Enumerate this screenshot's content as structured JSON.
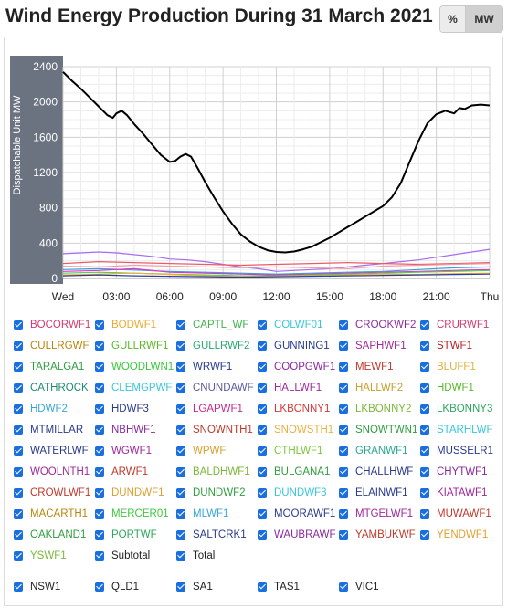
{
  "header": {
    "title": "Wind Energy Production During 31 March 2021",
    "toggle": {
      "percent_label": "%",
      "mw_label": "MW",
      "selected": "MW"
    }
  },
  "chart_data": {
    "type": "line",
    "ylabel": "Dispatchable Unit MW",
    "ylim": [
      0,
      2400
    ],
    "yticks": [
      "0",
      "400",
      "800",
      "1200",
      "1600",
      "2000",
      "2400"
    ],
    "xlim": [
      0,
      24
    ],
    "xticks": [
      {
        "x": 0,
        "label": "Wed"
      },
      {
        "x": 3,
        "label": "03:00"
      },
      {
        "x": 6,
        "label": "06:00"
      },
      {
        "x": 9,
        "label": "09:00"
      },
      {
        "x": 12,
        "label": "12:00"
      },
      {
        "x": 15,
        "label": "15:00"
      },
      {
        "x": 18,
        "label": "18:00"
      },
      {
        "x": 21,
        "label": "21:00"
      },
      {
        "x": 24,
        "label": "Thu"
      }
    ],
    "grid": true,
    "series": [
      {
        "name": "Total",
        "color": "#000000",
        "x": [
          0,
          0.5,
          1,
          1.5,
          2,
          2.5,
          2.8,
          3,
          3.3,
          3.6,
          4,
          4.5,
          5,
          5.5,
          6,
          6.3,
          6.6,
          6.9,
          7.2,
          7.6,
          8,
          8.5,
          9,
          9.5,
          10,
          10.5,
          11,
          11.5,
          12,
          12.5,
          13,
          13.5,
          14,
          14.5,
          15,
          15.5,
          16,
          16.5,
          17,
          17.5,
          18,
          18.5,
          19,
          19.5,
          20,
          20.5,
          21,
          21.5,
          22,
          22.3,
          22.6,
          23,
          23.5,
          24
        ],
        "y": [
          2340,
          2240,
          2150,
          2050,
          1950,
          1850,
          1820,
          1870,
          1900,
          1850,
          1750,
          1640,
          1520,
          1400,
          1320,
          1330,
          1380,
          1410,
          1380,
          1240,
          1090,
          920,
          760,
          620,
          500,
          420,
          360,
          320,
          300,
          295,
          305,
          330,
          360,
          410,
          460,
          520,
          580,
          640,
          700,
          760,
          820,
          920,
          1080,
          1320,
          1560,
          1760,
          1860,
          1900,
          1870,
          1930,
          1920,
          1960,
          1970,
          1960
        ]
      },
      {
        "name": "",
        "color": "#a66cf0",
        "x": [
          0,
          1,
          2,
          3,
          4,
          5,
          6,
          7,
          8,
          9,
          10,
          11,
          12,
          13,
          14,
          15,
          16,
          17,
          18,
          19,
          20,
          21,
          22,
          23,
          24
        ],
        "y": [
          280,
          290,
          300,
          290,
          270,
          250,
          220,
          210,
          190,
          160,
          130,
          110,
          80,
          90,
          100,
          110,
          130,
          150,
          170,
          190,
          210,
          240,
          270,
          300,
          330
        ]
      },
      {
        "name": "",
        "color": "#e85c68",
        "x": [
          0,
          2,
          4,
          6,
          8,
          10,
          12,
          14,
          16,
          18,
          20,
          22,
          24
        ],
        "y": [
          170,
          190,
          180,
          170,
          160,
          150,
          160,
          170,
          180,
          170,
          160,
          170,
          180
        ]
      },
      {
        "name": "",
        "color": "#f0a0a8",
        "x": [
          0,
          2,
          4,
          6,
          8,
          10,
          12,
          14,
          16,
          18,
          20,
          22,
          24
        ],
        "y": [
          140,
          130,
          150,
          140,
          130,
          120,
          130,
          120,
          110,
          140,
          150,
          160,
          170
        ]
      },
      {
        "name": "",
        "color": "#3aa0d8",
        "x": [
          0,
          2,
          4,
          6,
          8,
          10,
          12,
          14,
          16,
          18,
          20,
          22,
          24
        ],
        "y": [
          100,
          110,
          95,
          80,
          70,
          60,
          50,
          60,
          70,
          80,
          100,
          120,
          130
        ]
      },
      {
        "name": "",
        "color": "#d63bbf",
        "x": [
          0,
          2,
          4,
          6,
          8,
          10,
          12,
          14,
          16,
          18,
          20,
          22,
          24
        ],
        "y": [
          80,
          90,
          110,
          70,
          60,
          50,
          40,
          50,
          60,
          70,
          80,
          90,
          100
        ]
      },
      {
        "name": "",
        "color": "#5ac85a",
        "x": [
          0,
          2,
          4,
          6,
          8,
          10,
          12,
          14,
          16,
          18,
          20,
          22,
          24
        ],
        "y": [
          60,
          70,
          60,
          50,
          40,
          30,
          30,
          40,
          50,
          60,
          70,
          80,
          90
        ]
      },
      {
        "name": "",
        "color": "#f0b030",
        "x": [
          0,
          2,
          4,
          6,
          8,
          10,
          12,
          14,
          16,
          18,
          20,
          22,
          24
        ],
        "y": [
          40,
          50,
          60,
          45,
          30,
          20,
          25,
          30,
          40,
          50,
          45,
          55,
          60
        ]
      },
      {
        "name": "",
        "color": "#2c3fa0",
        "x": [
          0,
          2,
          4,
          6,
          8,
          10,
          12,
          14,
          16,
          18,
          20,
          22,
          24
        ],
        "y": [
          30,
          40,
          30,
          25,
          20,
          15,
          20,
          25,
          30,
          35,
          40,
          45,
          50
        ]
      }
    ]
  },
  "legend": {
    "items": [
      {
        "label": "BOCORWF1",
        "color": "#d43a6a"
      },
      {
        "label": "BODWF1",
        "color": "#f0a830"
      },
      {
        "label": "CAPTL_WF",
        "color": "#3cb44b"
      },
      {
        "label": "COLWF01",
        "color": "#38c8d8"
      },
      {
        "label": "CROOKWF2",
        "color": "#8b2c9e"
      },
      {
        "label": "CRURWF1",
        "color": "#d43a6a"
      },
      {
        "label": "CULLRGWF",
        "color": "#b8860b"
      },
      {
        "label": "GULLRWF1",
        "color": "#5ab82a"
      },
      {
        "label": "GULLRWF2",
        "color": "#2aa870"
      },
      {
        "label": "GUNNING1",
        "color": "#2a3a8c"
      },
      {
        "label": "SAPHWF1",
        "color": "#a0289e"
      },
      {
        "label": "STWF1",
        "color": "#b82020"
      },
      {
        "label": "TARALGA1",
        "color": "#2e9e3e"
      },
      {
        "label": "WOODLWN1",
        "color": "#3cc83c"
      },
      {
        "label": "WRWF1",
        "color": "#2a3a8c"
      },
      {
        "label": "COOPGWF1",
        "color": "#8a2aa0"
      },
      {
        "label": "MEWF1",
        "color": "#c0392b"
      },
      {
        "label": "BLUFF1",
        "color": "#e0b040"
      },
      {
        "label": "CATHROCK",
        "color": "#1e8c6e"
      },
      {
        "label": "CLEMGPWF",
        "color": "#38c8d8"
      },
      {
        "label": "CNUNDAWF",
        "color": "#5a5aa0"
      },
      {
        "label": "HALLWF1",
        "color": "#a0289e"
      },
      {
        "label": "HALLWF2",
        "color": "#c8a030"
      },
      {
        "label": "HDWF1",
        "color": "#5ab82a"
      },
      {
        "label": "HDWF2",
        "color": "#38a8d8"
      },
      {
        "label": "HDWF3",
        "color": "#2a3a8c"
      },
      {
        "label": "LGAPWF1",
        "color": "#c8288c"
      },
      {
        "label": "LKBONNY1",
        "color": "#d43a3a"
      },
      {
        "label": "LKBONNY2",
        "color": "#7ab83a"
      },
      {
        "label": "LKBONNY3",
        "color": "#2aa858"
      },
      {
        "label": "MTMILLAR",
        "color": "#2a3a8c"
      },
      {
        "label": "NBHWF1",
        "color": "#8a2aa0"
      },
      {
        "label": "SNOWNTH1",
        "color": "#c0392b"
      },
      {
        "label": "SNOWSTH1",
        "color": "#e8b040"
      },
      {
        "label": "SNOWTWN1",
        "color": "#2e9e3e"
      },
      {
        "label": "STARHLWF",
        "color": "#38c8d8"
      },
      {
        "label": "WATERLWF",
        "color": "#2a3a8c"
      },
      {
        "label": "WGWF1",
        "color": "#a0289e"
      },
      {
        "label": "WPWF",
        "color": "#d8a030"
      },
      {
        "label": "CTHLWF1",
        "color": "#7ac83a"
      },
      {
        "label": "GRANWF1",
        "color": "#2aa890"
      },
      {
        "label": "MUSSELR1",
        "color": "#2a3a8c"
      },
      {
        "label": "WOOLNTH1",
        "color": "#a0289e"
      },
      {
        "label": "ARWF1",
        "color": "#c0392b"
      },
      {
        "label": "BALDHWF1",
        "color": "#7ab83a"
      },
      {
        "label": "BULGANA1",
        "color": "#2e9e3e"
      },
      {
        "label": "CHALLHWF",
        "color": "#2a3a8c"
      },
      {
        "label": "CHYTWF1",
        "color": "#8a2aa0"
      },
      {
        "label": "CROWLWF1",
        "color": "#c0392b"
      },
      {
        "label": "DUNDWF1",
        "color": "#d8a030"
      },
      {
        "label": "DUNDWF2",
        "color": "#2e9e3e"
      },
      {
        "label": "DUNDWF3",
        "color": "#38c8d8"
      },
      {
        "label": "ELAINWF1",
        "color": "#2a3a8c"
      },
      {
        "label": "KIATAWF1",
        "color": "#a0289e"
      },
      {
        "label": "MACARTH1",
        "color": "#b8860b"
      },
      {
        "label": "MERCER01",
        "color": "#3cc83c"
      },
      {
        "label": "MLWF1",
        "color": "#38a8d8"
      },
      {
        "label": "MOORAWF1",
        "color": "#2a3a8c"
      },
      {
        "label": "MTGELWF1",
        "color": "#a0289e"
      },
      {
        "label": "MUWAWF1",
        "color": "#c0392b"
      },
      {
        "label": "OAKLAND1",
        "color": "#2e9e3e"
      },
      {
        "label": "PORTWF",
        "color": "#2aa858"
      },
      {
        "label": "SALTCRK1",
        "color": "#2a3a8c"
      },
      {
        "label": "WAUBRAWF",
        "color": "#8a2aa0"
      },
      {
        "label": "YAMBUKWF",
        "color": "#c0392b"
      },
      {
        "label": "YENDWF1",
        "color": "#e0a030"
      },
      {
        "label": "YSWF1",
        "color": "#7ab83a"
      },
      {
        "label": "Subtotal",
        "color": "#222222"
      },
      {
        "label": "Total",
        "color": "#222222"
      }
    ]
  },
  "regions": {
    "items": [
      {
        "label": "NSW1"
      },
      {
        "label": "QLD1"
      },
      {
        "label": "SA1"
      },
      {
        "label": "TAS1"
      },
      {
        "label": "VIC1"
      }
    ]
  }
}
